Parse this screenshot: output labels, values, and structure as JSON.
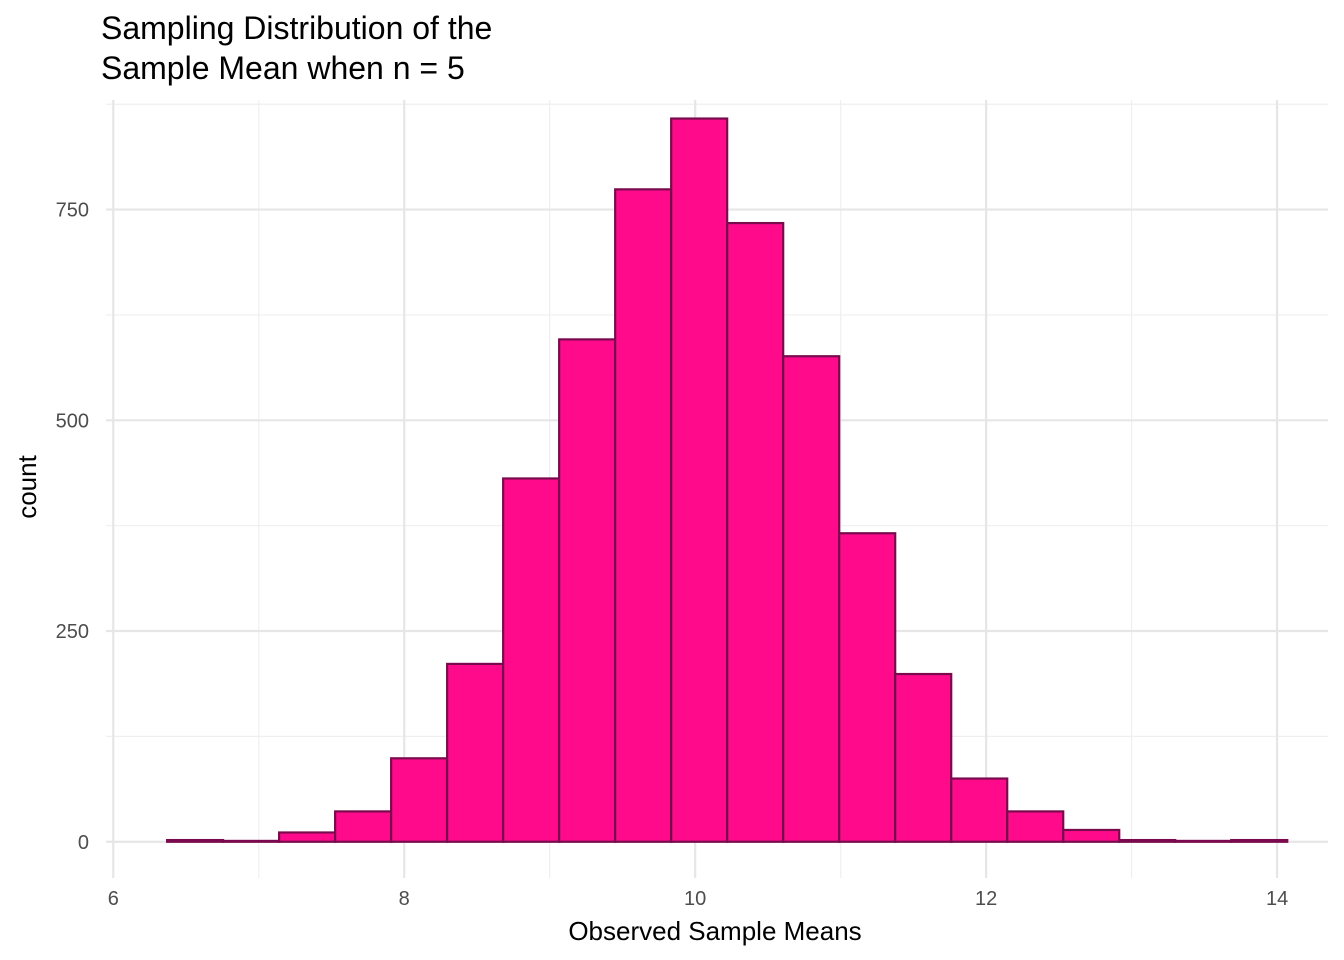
{
  "chart_data": {
    "type": "bar",
    "title_lines": [
      "Sampling Distribution of the",
      "Sample Mean when n = 5"
    ],
    "xlabel": "Observed Sample Means",
    "ylabel": "count",
    "xlim": [
      5.95,
      14.35
    ],
    "ylim": [
      -43,
      880
    ],
    "x_ticks": [
      6,
      8,
      10,
      12,
      14
    ],
    "x_tick_labels": [
      "6",
      "8",
      "10",
      "12",
      "14"
    ],
    "y_ticks": [
      0,
      250,
      500,
      750
    ],
    "y_tick_labels": [
      "0",
      "250",
      "500",
      "750"
    ],
    "grid": true,
    "bin_edges": [
      6.37,
      6.755,
      7.14,
      7.525,
      7.91,
      8.295,
      8.68,
      9.065,
      9.45,
      9.835,
      10.22,
      10.605,
      10.99,
      11.375,
      11.76,
      12.145,
      12.53,
      12.915,
      13.3,
      13.685,
      14.07
    ],
    "values": [
      2,
      1,
      11,
      36,
      99,
      211,
      431,
      596,
      774,
      858,
      734,
      576,
      366,
      199,
      75,
      36,
      14,
      2,
      1,
      2
    ],
    "fill_color": "#ff0a8a",
    "edge_color": "#7a0a4e"
  }
}
